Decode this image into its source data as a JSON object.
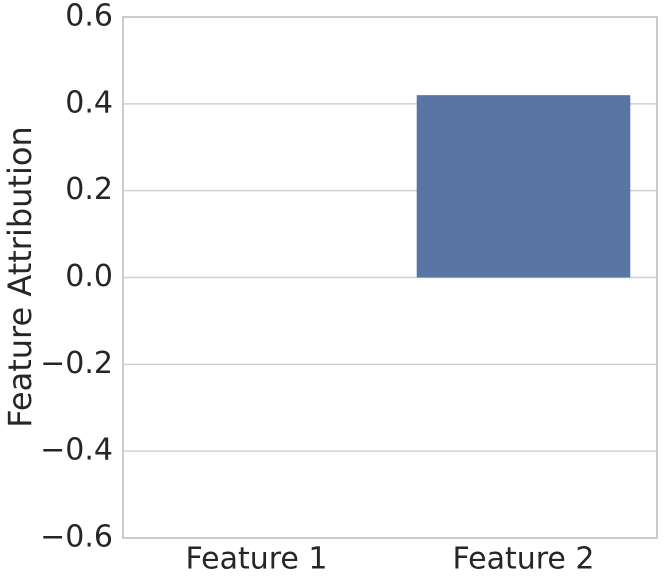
{
  "chart_data": {
    "type": "bar",
    "y_label": "Feature Attribution",
    "categories": [
      "Feature 1",
      "Feature 2"
    ],
    "values": [
      0,
      0.42
    ],
    "color": "#5975a4",
    "ylim": [
      -0.6,
      0.6
    ],
    "yticks": [
      {
        "value": -0.6,
        "label": "−0.6"
      },
      {
        "value": -0.4,
        "label": "−0.4"
      },
      {
        "value": -0.2,
        "label": "−0.2"
      },
      {
        "value": 0,
        "label": "0.0"
      },
      0.2,
      0.4,
      0.6
    ],
    "grid": true
  }
}
